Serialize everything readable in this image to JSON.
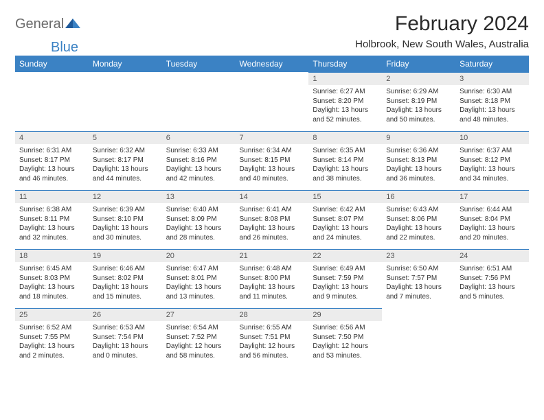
{
  "logo": {
    "text1": "General",
    "text2": "Blue"
  },
  "title": "February 2024",
  "location": "Holbrook, New South Wales, Australia",
  "colors": {
    "header_bg": "#3b82c4",
    "header_text": "#ffffff",
    "daynum_bg": "#ececec",
    "border": "#3b82c4",
    "logo_gray": "#6b6b6b",
    "logo_blue": "#3b82c4"
  },
  "day_headers": [
    "Sunday",
    "Monday",
    "Tuesday",
    "Wednesday",
    "Thursday",
    "Friday",
    "Saturday"
  ],
  "weeks": [
    [
      {
        "n": "",
        "sr": "",
        "ss": "",
        "dl": ""
      },
      {
        "n": "",
        "sr": "",
        "ss": "",
        "dl": ""
      },
      {
        "n": "",
        "sr": "",
        "ss": "",
        "dl": ""
      },
      {
        "n": "",
        "sr": "",
        "ss": "",
        "dl": ""
      },
      {
        "n": "1",
        "sr": "Sunrise: 6:27 AM",
        "ss": "Sunset: 8:20 PM",
        "dl": "Daylight: 13 hours and 52 minutes."
      },
      {
        "n": "2",
        "sr": "Sunrise: 6:29 AM",
        "ss": "Sunset: 8:19 PM",
        "dl": "Daylight: 13 hours and 50 minutes."
      },
      {
        "n": "3",
        "sr": "Sunrise: 6:30 AM",
        "ss": "Sunset: 8:18 PM",
        "dl": "Daylight: 13 hours and 48 minutes."
      }
    ],
    [
      {
        "n": "4",
        "sr": "Sunrise: 6:31 AM",
        "ss": "Sunset: 8:17 PM",
        "dl": "Daylight: 13 hours and 46 minutes."
      },
      {
        "n": "5",
        "sr": "Sunrise: 6:32 AM",
        "ss": "Sunset: 8:17 PM",
        "dl": "Daylight: 13 hours and 44 minutes."
      },
      {
        "n": "6",
        "sr": "Sunrise: 6:33 AM",
        "ss": "Sunset: 8:16 PM",
        "dl": "Daylight: 13 hours and 42 minutes."
      },
      {
        "n": "7",
        "sr": "Sunrise: 6:34 AM",
        "ss": "Sunset: 8:15 PM",
        "dl": "Daylight: 13 hours and 40 minutes."
      },
      {
        "n": "8",
        "sr": "Sunrise: 6:35 AM",
        "ss": "Sunset: 8:14 PM",
        "dl": "Daylight: 13 hours and 38 minutes."
      },
      {
        "n": "9",
        "sr": "Sunrise: 6:36 AM",
        "ss": "Sunset: 8:13 PM",
        "dl": "Daylight: 13 hours and 36 minutes."
      },
      {
        "n": "10",
        "sr": "Sunrise: 6:37 AM",
        "ss": "Sunset: 8:12 PM",
        "dl": "Daylight: 13 hours and 34 minutes."
      }
    ],
    [
      {
        "n": "11",
        "sr": "Sunrise: 6:38 AM",
        "ss": "Sunset: 8:11 PM",
        "dl": "Daylight: 13 hours and 32 minutes."
      },
      {
        "n": "12",
        "sr": "Sunrise: 6:39 AM",
        "ss": "Sunset: 8:10 PM",
        "dl": "Daylight: 13 hours and 30 minutes."
      },
      {
        "n": "13",
        "sr": "Sunrise: 6:40 AM",
        "ss": "Sunset: 8:09 PM",
        "dl": "Daylight: 13 hours and 28 minutes."
      },
      {
        "n": "14",
        "sr": "Sunrise: 6:41 AM",
        "ss": "Sunset: 8:08 PM",
        "dl": "Daylight: 13 hours and 26 minutes."
      },
      {
        "n": "15",
        "sr": "Sunrise: 6:42 AM",
        "ss": "Sunset: 8:07 PM",
        "dl": "Daylight: 13 hours and 24 minutes."
      },
      {
        "n": "16",
        "sr": "Sunrise: 6:43 AM",
        "ss": "Sunset: 8:06 PM",
        "dl": "Daylight: 13 hours and 22 minutes."
      },
      {
        "n": "17",
        "sr": "Sunrise: 6:44 AM",
        "ss": "Sunset: 8:04 PM",
        "dl": "Daylight: 13 hours and 20 minutes."
      }
    ],
    [
      {
        "n": "18",
        "sr": "Sunrise: 6:45 AM",
        "ss": "Sunset: 8:03 PM",
        "dl": "Daylight: 13 hours and 18 minutes."
      },
      {
        "n": "19",
        "sr": "Sunrise: 6:46 AM",
        "ss": "Sunset: 8:02 PM",
        "dl": "Daylight: 13 hours and 15 minutes."
      },
      {
        "n": "20",
        "sr": "Sunrise: 6:47 AM",
        "ss": "Sunset: 8:01 PM",
        "dl": "Daylight: 13 hours and 13 minutes."
      },
      {
        "n": "21",
        "sr": "Sunrise: 6:48 AM",
        "ss": "Sunset: 8:00 PM",
        "dl": "Daylight: 13 hours and 11 minutes."
      },
      {
        "n": "22",
        "sr": "Sunrise: 6:49 AM",
        "ss": "Sunset: 7:59 PM",
        "dl": "Daylight: 13 hours and 9 minutes."
      },
      {
        "n": "23",
        "sr": "Sunrise: 6:50 AM",
        "ss": "Sunset: 7:57 PM",
        "dl": "Daylight: 13 hours and 7 minutes."
      },
      {
        "n": "24",
        "sr": "Sunrise: 6:51 AM",
        "ss": "Sunset: 7:56 PM",
        "dl": "Daylight: 13 hours and 5 minutes."
      }
    ],
    [
      {
        "n": "25",
        "sr": "Sunrise: 6:52 AM",
        "ss": "Sunset: 7:55 PM",
        "dl": "Daylight: 13 hours and 2 minutes."
      },
      {
        "n": "26",
        "sr": "Sunrise: 6:53 AM",
        "ss": "Sunset: 7:54 PM",
        "dl": "Daylight: 13 hours and 0 minutes."
      },
      {
        "n": "27",
        "sr": "Sunrise: 6:54 AM",
        "ss": "Sunset: 7:52 PM",
        "dl": "Daylight: 12 hours and 58 minutes."
      },
      {
        "n": "28",
        "sr": "Sunrise: 6:55 AM",
        "ss": "Sunset: 7:51 PM",
        "dl": "Daylight: 12 hours and 56 minutes."
      },
      {
        "n": "29",
        "sr": "Sunrise: 6:56 AM",
        "ss": "Sunset: 7:50 PM",
        "dl": "Daylight: 12 hours and 53 minutes."
      },
      {
        "n": "",
        "sr": "",
        "ss": "",
        "dl": ""
      },
      {
        "n": "",
        "sr": "",
        "ss": "",
        "dl": ""
      }
    ]
  ]
}
